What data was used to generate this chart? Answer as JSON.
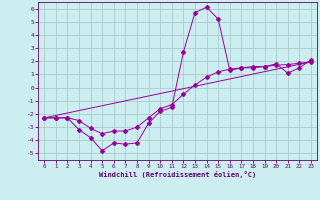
{
  "xlabel": "Windchill (Refroidissement éolien,°C)",
  "bg_color": "#cceef0",
  "grid_color": "#aacccc",
  "line_color": "#990099",
  "xlim": [
    -0.5,
    23.5
  ],
  "ylim": [
    -5.5,
    6.5
  ],
  "xticks": [
    0,
    1,
    2,
    3,
    4,
    5,
    6,
    7,
    8,
    9,
    10,
    11,
    12,
    13,
    14,
    15,
    16,
    17,
    18,
    19,
    20,
    21,
    22,
    23
  ],
  "yticks": [
    -5,
    -4,
    -3,
    -2,
    -1,
    0,
    1,
    2,
    3,
    4,
    5,
    6
  ],
  "line1_x": [
    0,
    1,
    2,
    3,
    4,
    5,
    6,
    7,
    8,
    9,
    10,
    11,
    12,
    13,
    14,
    15,
    16,
    17,
    18,
    19,
    20,
    21,
    22,
    23
  ],
  "line1_y": [
    -2.3,
    -2.3,
    -2.3,
    -3.2,
    -3.8,
    -4.8,
    -4.2,
    -4.3,
    -4.2,
    -2.7,
    -1.8,
    -1.5,
    2.7,
    5.7,
    6.1,
    5.2,
    1.3,
    1.5,
    1.5,
    1.6,
    1.8,
    1.1,
    1.5,
    2.1
  ],
  "line2_x": [
    0,
    1,
    2,
    3,
    4,
    5,
    6,
    7,
    8,
    9,
    10,
    11,
    12,
    13,
    14,
    15,
    16,
    17,
    18,
    19,
    20,
    21,
    22,
    23
  ],
  "line2_y": [
    -2.3,
    -2.3,
    -2.3,
    -2.5,
    -3.1,
    -3.5,
    -3.3,
    -3.3,
    -3.0,
    -2.3,
    -1.6,
    -1.3,
    -0.5,
    0.2,
    0.8,
    1.2,
    1.4,
    1.5,
    1.6,
    1.6,
    1.7,
    1.75,
    1.85,
    1.95
  ],
  "line3_x": [
    0,
    23
  ],
  "line3_y": [
    -2.3,
    1.95
  ]
}
